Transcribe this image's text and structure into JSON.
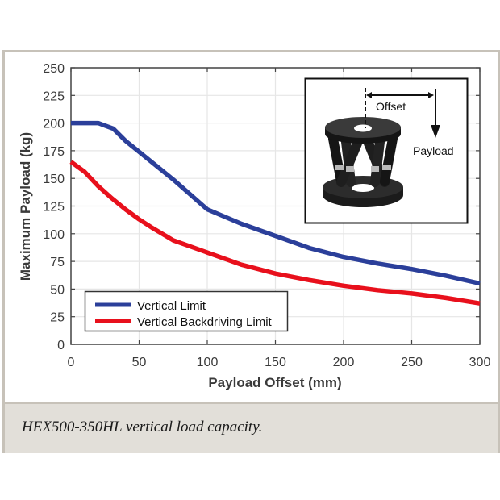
{
  "chart_data": {
    "type": "line",
    "title": "",
    "xlabel": "Payload Offset (mm)",
    "ylabel": "Maximum Payload (kg)",
    "xlim": [
      0,
      300
    ],
    "ylim": [
      0,
      250
    ],
    "xticks": [
      0,
      50,
      100,
      150,
      200,
      250,
      300
    ],
    "yticks": [
      0,
      25,
      50,
      75,
      100,
      125,
      150,
      175,
      200,
      225,
      250
    ],
    "grid": true,
    "legend_position": "lower left",
    "series": [
      {
        "name": "Vertical Limit",
        "color": "#2b3f9a",
        "x": [
          0,
          10,
          20,
          31,
          40,
          50,
          60,
          75,
          100,
          125,
          150,
          175,
          200,
          225,
          250,
          275,
          300
        ],
        "y": [
          200,
          200,
          200,
          195,
          184,
          174,
          164,
          149,
          122,
          109,
          98,
          87,
          79,
          73,
          68,
          62,
          55
        ]
      },
      {
        "name": "Vertical Backdriving Limit",
        "color": "#e8101c",
        "x": [
          0,
          10,
          20,
          30,
          40,
          50,
          60,
          75,
          100,
          125,
          150,
          175,
          200,
          225,
          250,
          275,
          300
        ],
        "y": [
          165,
          156,
          143,
          132,
          122,
          113,
          105,
          94,
          83,
          72,
          64,
          58,
          53,
          49,
          46,
          42,
          37
        ]
      }
    ],
    "annotations": [
      {
        "type": "inset-image",
        "description": "hexapod photo with offset and payload arrows",
        "labels": [
          "Offset",
          "Payload"
        ]
      }
    ]
  },
  "inset": {
    "offset_label": "Offset",
    "payload_label": "Payload"
  },
  "caption": "HEX500-350HL vertical load capacity."
}
